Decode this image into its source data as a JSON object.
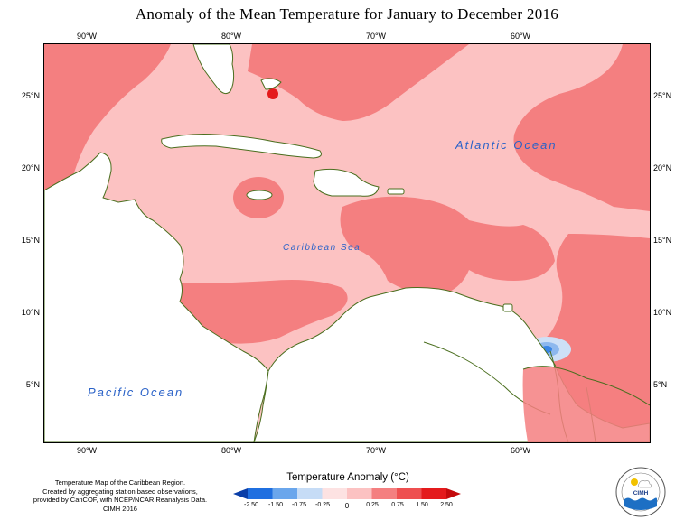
{
  "title": "Anomaly of the Mean Temperature for January to December 2016",
  "map": {
    "lon_labels": [
      "90°W",
      "80°W",
      "70°W",
      "60°W"
    ],
    "lat_labels": [
      "25°N",
      "20°N",
      "15°N",
      "10°N",
      "5°N"
    ],
    "labels": {
      "atlantic": "Atlantic Ocean",
      "caribbean": "Caribbean Sea",
      "pacific": "Pacific Ocean"
    },
    "colors": {
      "land_outline": "#4a6e1e",
      "land_fill": "#ffffff",
      "class_0_25_to_0_75": "#fcc2c2",
      "class_0_75_to_1_50": "#f47f80",
      "class_1_50_to_2_50": "#e41a1c",
      "class_neg_0_25_to_0": "#cde0f7",
      "class_neg_0_75_to_neg_0_25": "#8db8ee",
      "class_neg_1_50_to_neg_0_75": "#3a86e6"
    }
  },
  "credit": {
    "line1": "Temperature Map of the Caribbean Region.",
    "line2": "Created by aggregating station based observations,",
    "line3": "provided by CariCOF, with NCEP/NCAR Reanalysis Data.",
    "line4": "CIMH 2016"
  },
  "legend": {
    "title": "Temperature Anomaly (°C)",
    "ticks": [
      "-2.50",
      "-1.50",
      "-0.75",
      "-0.25",
      "0",
      "0.25",
      "0.75",
      "1.50",
      "2.50"
    ],
    "colors": [
      "#0a3ea8",
      "#1f6fe0",
      "#6aa6ec",
      "#c6dcf6",
      "#fde2e2",
      "#fcc2c2",
      "#f47f80",
      "#e41a1c"
    ]
  },
  "logo": {
    "text": "CIMH"
  }
}
